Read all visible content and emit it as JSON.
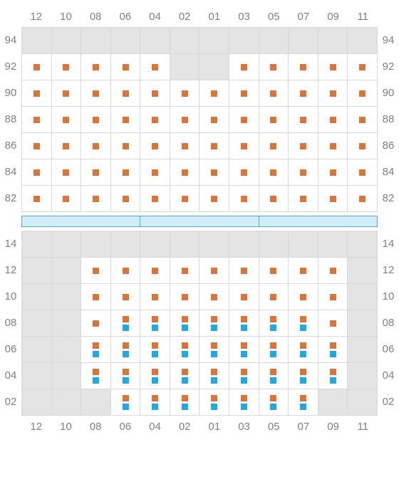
{
  "colors": {
    "orange": "#dd7437",
    "blue": "#1daae6",
    "blank": "#e4e4e4",
    "grid_border": "#d8d8d8",
    "label_text": "#808080",
    "divider_fill": "#d0ecfb",
    "divider_border": "#5aa8d8"
  },
  "columns": [
    "12",
    "10",
    "08",
    "06",
    "04",
    "02",
    "01",
    "03",
    "05",
    "07",
    "09",
    "11"
  ],
  "upper": {
    "row_labels": [
      "94",
      "92",
      "90",
      "88",
      "86",
      "84",
      "82"
    ],
    "cells": [
      [
        "b",
        "b",
        "b",
        "b",
        "b",
        "b",
        "b",
        "b",
        "b",
        "b",
        "b",
        "b"
      ],
      [
        "o",
        "o",
        "o",
        "o",
        "o",
        "b",
        "b",
        "o",
        "o",
        "o",
        "o",
        "o"
      ],
      [
        "o",
        "o",
        "o",
        "o",
        "o",
        "o",
        "o",
        "o",
        "o",
        "o",
        "o",
        "o"
      ],
      [
        "o",
        "o",
        "o",
        "o",
        "o",
        "o",
        "o",
        "o",
        "o",
        "o",
        "o",
        "o"
      ],
      [
        "o",
        "o",
        "o",
        "o",
        "o",
        "o",
        "o",
        "o",
        "o",
        "o",
        "o",
        "o"
      ],
      [
        "o",
        "o",
        "o",
        "o",
        "o",
        "o",
        "o",
        "o",
        "o",
        "o",
        "o",
        "o"
      ],
      [
        "o",
        "o",
        "o",
        "o",
        "o",
        "o",
        "o",
        "o",
        "o",
        "o",
        "o",
        "o"
      ]
    ]
  },
  "divider_segments": 3,
  "lower": {
    "row_labels": [
      "14",
      "12",
      "10",
      "08",
      "06",
      "04",
      "02"
    ],
    "cells": [
      [
        "b",
        "b",
        "b",
        "b",
        "b",
        "b",
        "b",
        "b",
        "b",
        "b",
        "b",
        "b"
      ],
      [
        "b",
        "b",
        "o",
        "o",
        "o",
        "o",
        "o",
        "o",
        "o",
        "o",
        "o",
        "b"
      ],
      [
        "b",
        "b",
        "o",
        "o",
        "o",
        "o",
        "o",
        "o",
        "o",
        "o",
        "o",
        "b"
      ],
      [
        "b",
        "b",
        "o",
        "ob",
        "ob",
        "ob",
        "ob",
        "ob",
        "ob",
        "ob",
        "o",
        "b"
      ],
      [
        "b",
        "b",
        "ob",
        "ob",
        "ob",
        "ob",
        "ob",
        "ob",
        "ob",
        "ob",
        "ob",
        "b"
      ],
      [
        "b",
        "b",
        "ob",
        "ob",
        "ob",
        "ob",
        "ob",
        "ob",
        "ob",
        "ob",
        "ob",
        "b"
      ],
      [
        "b",
        "b",
        "b",
        "ob",
        "ob",
        "ob",
        "ob",
        "ob",
        "ob",
        "ob",
        "b",
        "b"
      ]
    ]
  }
}
